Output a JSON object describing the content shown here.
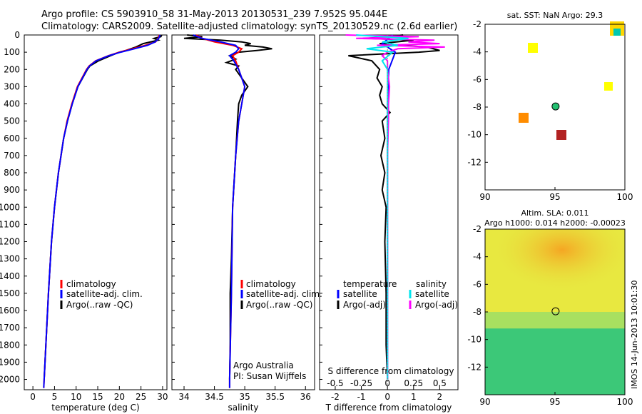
{
  "header": {
    "line1": "Argo profile: CS 5903910_58 31-May-2013 20130531_239 7.952S 95.044E",
    "line2": "Climatology: CARS2009. Satellite-adjusted climatology: synTS_20130529.nc (2.6d earlier)"
  },
  "colors": {
    "climatology": "#ff0000",
    "satellite": "#0000ff",
    "argo": "#000000",
    "salinity_satellite": "#00e5ee",
    "salinity_argo": "#ff00ff"
  },
  "chart_data": [
    {
      "id": "temperature",
      "type": "line",
      "title": "",
      "xlabel": "temperature (deg C)",
      "ylabel": "",
      "xlim": [
        -2,
        31
      ],
      "ylim": [
        2060,
        0
      ],
      "xticks": [
        0,
        5,
        10,
        15,
        20,
        25,
        30
      ],
      "yticks": [
        0,
        100,
        200,
        300,
        400,
        500,
        600,
        700,
        800,
        900,
        1000,
        1100,
        1200,
        1300,
        1400,
        1500,
        1600,
        1700,
        1800,
        1900,
        2000
      ],
      "legend": [
        "climatology",
        "satellite-adj. clim.",
        "Argo(..raw -QC)"
      ],
      "series": [
        {
          "name": "climatology",
          "depth": [
            0,
            20,
            40,
            60,
            80,
            100,
            120,
            150,
            180,
            200,
            300,
            400,
            500,
            600,
            800,
            1000,
            1200,
            1500,
            1800,
            2000,
            2050
          ],
          "values": [
            29.2,
            29.0,
            28.4,
            26.0,
            23.0,
            20.0,
            17.5,
            14.5,
            13.0,
            12.4,
            10.3,
            9.0,
            7.9,
            7.1,
            5.9,
            5.0,
            4.3,
            3.6,
            3.0,
            2.6,
            2.5
          ]
        },
        {
          "name": "satellite-adj. clim.",
          "depth": [
            0,
            20,
            40,
            60,
            80,
            100,
            120,
            150,
            180,
            200,
            300,
            400,
            500,
            600,
            800,
            1000,
            1200,
            1500,
            1800,
            2000,
            2050
          ],
          "values": [
            29.4,
            29.1,
            28.3,
            26.5,
            23.5,
            20.3,
            17.6,
            14.6,
            13.1,
            12.5,
            10.4,
            9.1,
            8.0,
            7.1,
            5.9,
            5.0,
            4.3,
            3.6,
            3.0,
            2.6,
            2.5
          ]
        },
        {
          "name": "Argo(..raw -QC)",
          "depth": [
            0,
            10,
            20,
            30,
            50,
            70,
            90,
            100,
            120,
            150,
            180,
            200,
            300,
            400,
            500,
            600,
            800,
            1000,
            1200,
            1500,
            1800,
            2000
          ],
          "values": [
            29.8,
            29.6,
            28.0,
            29.0,
            25.5,
            23.8,
            21.5,
            20.0,
            18.0,
            15.2,
            13.2,
            12.6,
            10.4,
            9.1,
            8.0,
            7.1,
            5.9,
            5.0,
            4.3,
            3.6,
            3.0,
            2.6
          ]
        }
      ]
    },
    {
      "id": "salinity",
      "type": "line",
      "title": "",
      "xlabel": "salinity",
      "ylabel": "",
      "xlim": [
        33.8,
        36.15
      ],
      "ylim": [
        2060,
        0
      ],
      "xticks": [
        34,
        34.5,
        35,
        35.5,
        36
      ],
      "legend": [
        "climatology",
        "satellite-adj. clim.",
        "Argo(..raw -QC)"
      ],
      "annotation": [
        "Argo Australia",
        "PI: Susan Wijffels"
      ],
      "series": [
        {
          "name": "climatology",
          "depth": [
            0,
            20,
            40,
            60,
            80,
            100,
            120,
            150,
            200,
            250,
            300,
            400,
            500,
            700,
            1000,
            1500,
            2000,
            2050
          ],
          "values": [
            34.2,
            34.3,
            34.5,
            34.8,
            34.95,
            34.9,
            34.8,
            34.85,
            34.9,
            34.95,
            35.0,
            34.95,
            34.9,
            34.85,
            34.8,
            34.78,
            34.75,
            34.75
          ]
        },
        {
          "name": "satellite-adj. clim.",
          "depth": [
            0,
            20,
            40,
            60,
            80,
            100,
            120,
            150,
            200,
            250,
            300,
            400,
            500,
            700,
            1000,
            1500,
            2000,
            2050
          ],
          "values": [
            34.15,
            34.3,
            34.6,
            34.85,
            34.9,
            34.85,
            34.75,
            34.82,
            34.9,
            34.95,
            35.0,
            34.95,
            34.9,
            34.85,
            34.8,
            34.78,
            34.75,
            34.75
          ]
        },
        {
          "name": "Argo(..raw -QC)",
          "depth": [
            0,
            10,
            20,
            30,
            40,
            50,
            60,
            70,
            80,
            90,
            100,
            120,
            140,
            160,
            180,
            200,
            250,
            300,
            350,
            400,
            500,
            700,
            1000,
            1300,
            1500,
            1800,
            2000
          ],
          "values": [
            34.05,
            34.3,
            34.0,
            34.6,
            34.95,
            35.1,
            35.0,
            35.3,
            35.45,
            35.2,
            34.9,
            34.75,
            34.85,
            34.7,
            34.9,
            34.85,
            34.95,
            35.05,
            34.95,
            34.9,
            34.88,
            34.85,
            34.8,
            34.78,
            34.76,
            34.76,
            34.75
          ]
        }
      ]
    },
    {
      "id": "difference",
      "type": "line",
      "title": "S difference from climatology",
      "xlabel": "T difference from climatology",
      "ylabel": "",
      "xlim": [
        -2.6,
        2.7
      ],
      "ylim": [
        2060,
        0
      ],
      "xticks": [
        -2,
        -1,
        0,
        1,
        2
      ],
      "sticks": [
        "-0.5",
        "-0.25",
        "0",
        "0.25",
        "0.5"
      ],
      "legend_temperature": [
        "temperature",
        "satellite",
        "Argo(-adj)"
      ],
      "legend_salinity": [
        "salinity",
        "satellite",
        "Argo(-adj)"
      ],
      "series": [
        {
          "name": "temperature satellite",
          "depth": [
            0,
            50,
            100,
            200,
            400,
            700,
            1000,
            1500,
            2000
          ],
          "values": [
            0.2,
            -0.2,
            0.3,
            0.05,
            0.0,
            0.0,
            0.0,
            0.0,
            0.0
          ]
        },
        {
          "name": "temperature Argo(-adj)",
          "depth": [
            0,
            10,
            20,
            30,
            50,
            70,
            90,
            100,
            120,
            150,
            200,
            250,
            300,
            350,
            400,
            450,
            500,
            600,
            700,
            800,
            900,
            1000,
            1200,
            1500,
            1800,
            2000
          ],
          "values": [
            0.6,
            0.0,
            -0.8,
            1.0,
            -0.3,
            1.5,
            2.0,
            1.2,
            -1.5,
            -0.6,
            -0.3,
            -0.4,
            -0.2,
            -0.3,
            -0.2,
            0.1,
            -0.2,
            -0.1,
            -0.25,
            -0.1,
            -0.2,
            -0.05,
            -0.1,
            -0.05,
            -0.05,
            0.0
          ]
        },
        {
          "name": "salinity satellite",
          "depth": [
            0,
            20,
            40,
            60,
            80,
            100,
            150,
            200,
            300,
            500,
            800,
            1200,
            2000
          ],
          "values": [
            -0.3,
            0.2,
            -0.05,
            0.1,
            -0.2,
            0.05,
            -0.05,
            0.0,
            0.0,
            0.0,
            0.0,
            0.0,
            0.0
          ]
        },
        {
          "name": "salinity Argo(-adj)",
          "depth": [
            0,
            10,
            20,
            30,
            40,
            50,
            60,
            70,
            80,
            100,
            120,
            150,
            200,
            300,
            400,
            500,
            700,
            1000,
            1500,
            2000
          ],
          "values": [
            -0.4,
            0.3,
            -0.3,
            0.45,
            0.2,
            0.5,
            -0.1,
            0.55,
            0.1,
            0.0,
            -0.05,
            0.0,
            0.0,
            0.02,
            0.01,
            0.01,
            0.0,
            0.0,
            0.0,
            0.0
          ]
        }
      ]
    },
    {
      "id": "sst_map",
      "type": "heatmap",
      "title": "sat. SST: NaN Argo: 29.3",
      "xlim": [
        90,
        100
      ],
      "ylim": [
        -14,
        -2
      ],
      "xticks": [
        "90",
        "95",
        "100"
      ],
      "yticks": [
        "-2",
        "-4",
        "-6",
        "-8",
        "-10",
        "-12"
      ],
      "argo_position": [
        95.044,
        -7.952
      ]
    },
    {
      "id": "sla_map",
      "type": "heatmap",
      "title": "Altim. SLA: 0.011",
      "subtitle": "Argo h1000: 0.014 h2000: -0.00023",
      "xlim": [
        90,
        100
      ],
      "ylim": [
        -14,
        -2
      ],
      "xticks": [
        "90",
        "95",
        "100"
      ],
      "yticks": [
        "-2",
        "-4",
        "-6",
        "-8",
        "-10",
        "-12"
      ],
      "argo_position": [
        95.044,
        -7.952
      ]
    }
  ],
  "footer": {
    "stamp": "IMOS 14-Jun-2013 10:01:30"
  }
}
